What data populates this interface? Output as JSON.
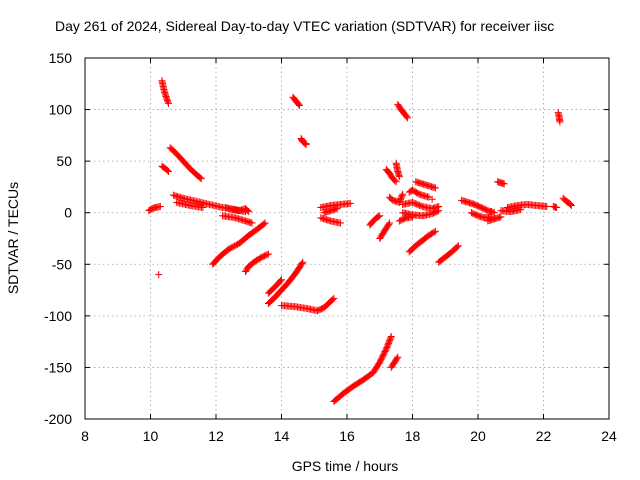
{
  "chart_data": {
    "type": "scatter",
    "title": "Day 261 of 2024, Sidereal Day-to-day VTEC variation (SDTVAR) for receiver iisc",
    "xlabel": "GPS time / hours",
    "ylabel": "SDTVAR / TECUs",
    "xlim": [
      8,
      24
    ],
    "ylim": [
      -200,
      150
    ],
    "xticks": [
      8,
      10,
      12,
      14,
      16,
      18,
      20,
      22,
      24
    ],
    "yticks": [
      -200,
      -150,
      -100,
      -50,
      0,
      50,
      100,
      150
    ],
    "grid": true,
    "marker": "+",
    "color": "#ff0000",
    "segments": [
      [
        [
          9.95,
          2
        ],
        [
          10.05,
          4
        ],
        [
          10.15,
          5
        ],
        [
          10.3,
          6
        ]
      ],
      [
        [
          10.35,
          128
        ],
        [
          10.42,
          118
        ],
        [
          10.5,
          110
        ],
        [
          10.55,
          106
        ]
      ],
      [
        [
          10.35,
          45
        ],
        [
          10.45,
          43
        ],
        [
          10.55,
          40
        ]
      ],
      [
        [
          10.6,
          63
        ],
        [
          10.8,
          57
        ],
        [
          11.0,
          50
        ],
        [
          11.2,
          43
        ],
        [
          11.4,
          37
        ],
        [
          11.55,
          33
        ]
      ],
      [
        [
          10.7,
          17
        ],
        [
          11.0,
          14
        ],
        [
          11.4,
          11
        ],
        [
          11.8,
          8
        ],
        [
          12.2,
          5
        ],
        [
          12.6,
          3
        ],
        [
          12.9,
          1
        ]
      ],
      [
        [
          10.8,
          10
        ],
        [
          11.2,
          7
        ],
        [
          11.6,
          5
        ]
      ],
      [
        [
          11.9,
          -50
        ],
        [
          12.1,
          -43
        ],
        [
          12.4,
          -35
        ],
        [
          12.7,
          -30
        ],
        [
          13.0,
          -22
        ],
        [
          13.3,
          -15
        ],
        [
          13.5,
          -10
        ]
      ],
      [
        [
          12.9,
          -57
        ],
        [
          13.0,
          -52
        ],
        [
          13.2,
          -47
        ],
        [
          13.4,
          -43
        ],
        [
          13.6,
          -40
        ]
      ],
      [
        [
          12.3,
          5
        ],
        [
          12.5,
          3
        ],
        [
          12.7,
          2
        ],
        [
          12.9,
          4
        ],
        [
          13.0,
          1
        ]
      ],
      [
        [
          12.2,
          -3
        ],
        [
          12.6,
          -5
        ],
        [
          12.9,
          -8
        ],
        [
          13.1,
          -10
        ]
      ],
      [
        [
          13.6,
          -88
        ],
        [
          13.8,
          -82
        ],
        [
          14.0,
          -75
        ],
        [
          14.2,
          -68
        ],
        [
          14.4,
          -60
        ],
        [
          14.55,
          -53
        ],
        [
          14.65,
          -48
        ]
      ],
      [
        [
          13.6,
          -78
        ],
        [
          13.8,
          -72
        ],
        [
          14.0,
          -65
        ]
      ],
      [
        [
          14.0,
          -90
        ],
        [
          14.4,
          -91
        ],
        [
          14.8,
          -93
        ],
        [
          15.1,
          -95
        ],
        [
          15.3,
          -92
        ],
        [
          15.5,
          -86
        ],
        [
          15.6,
          -83
        ]
      ],
      [
        [
          14.35,
          112
        ],
        [
          14.45,
          108
        ],
        [
          14.55,
          104
        ]
      ],
      [
        [
          14.6,
          72
        ],
        [
          14.65,
          69
        ],
        [
          14.75,
          66
        ]
      ],
      [
        [
          15.6,
          -183
        ],
        [
          15.9,
          -175
        ],
        [
          16.2,
          -168
        ],
        [
          16.5,
          -162
        ],
        [
          16.8,
          -155
        ],
        [
          17.0,
          -145
        ],
        [
          17.2,
          -132
        ],
        [
          17.35,
          -120
        ]
      ],
      [
        [
          17.35,
          -150
        ],
        [
          17.45,
          -145
        ],
        [
          17.55,
          -140
        ]
      ],
      [
        [
          15.2,
          5
        ],
        [
          15.5,
          7
        ],
        [
          15.8,
          8
        ],
        [
          16.1,
          9
        ]
      ],
      [
        [
          15.2,
          -5
        ],
        [
          15.5,
          -8
        ],
        [
          15.8,
          -10
        ]
      ],
      [
        [
          15.3,
          0
        ],
        [
          15.5,
          2
        ],
        [
          15.7,
          4
        ]
      ],
      [
        [
          16.7,
          -12
        ],
        [
          16.8,
          -8
        ],
        [
          16.9,
          -5
        ],
        [
          17.0,
          -3
        ]
      ],
      [
        [
          17.0,
          -25
        ],
        [
          17.1,
          -20
        ],
        [
          17.2,
          -15
        ],
        [
          17.3,
          -10
        ]
      ],
      [
        [
          17.2,
          42
        ],
        [
          17.3,
          38
        ],
        [
          17.4,
          33
        ],
        [
          17.5,
          30
        ]
      ],
      [
        [
          17.5,
          48
        ],
        [
          17.55,
          40
        ],
        [
          17.6,
          35
        ]
      ],
      [
        [
          17.55,
          105
        ],
        [
          17.65,
          100
        ],
        [
          17.75,
          96
        ],
        [
          17.85,
          92
        ]
      ],
      [
        [
          17.9,
          20
        ],
        [
          18.0,
          22
        ],
        [
          18.2,
          18
        ],
        [
          18.5,
          15
        ]
      ],
      [
        [
          17.7,
          8
        ],
        [
          18.0,
          10
        ],
        [
          18.3,
          6
        ],
        [
          18.6,
          4
        ],
        [
          18.8,
          6
        ]
      ],
      [
        [
          17.7,
          0
        ],
        [
          18.0,
          -2
        ],
        [
          18.3,
          -3
        ],
        [
          18.6,
          -1
        ],
        [
          18.8,
          2
        ]
      ],
      [
        [
          17.6,
          -8
        ],
        [
          17.8,
          -5
        ],
        [
          18.0,
          -4
        ]
      ],
      [
        [
          17.3,
          15
        ],
        [
          17.4,
          12
        ],
        [
          17.6,
          10
        ],
        [
          17.7,
          18
        ]
      ],
      [
        [
          18.1,
          30
        ],
        [
          18.3,
          28
        ],
        [
          18.5,
          26
        ],
        [
          18.7,
          24
        ]
      ],
      [
        [
          17.9,
          -38
        ],
        [
          18.1,
          -32
        ],
        [
          18.3,
          -27
        ],
        [
          18.5,
          -22
        ],
        [
          18.7,
          -18
        ]
      ],
      [
        [
          18.8,
          -48
        ],
        [
          19.0,
          -43
        ],
        [
          19.2,
          -38
        ],
        [
          19.4,
          -32
        ]
      ],
      [
        [
          19.5,
          12
        ],
        [
          19.7,
          10
        ],
        [
          19.9,
          8
        ],
        [
          20.1,
          5
        ],
        [
          20.3,
          2
        ],
        [
          20.5,
          0
        ]
      ],
      [
        [
          19.8,
          0
        ],
        [
          20.0,
          -3
        ],
        [
          20.2,
          -5
        ],
        [
          20.4,
          -4
        ]
      ],
      [
        [
          20.3,
          -8
        ],
        [
          20.5,
          -6
        ],
        [
          20.7,
          -4
        ]
      ],
      [
        [
          20.6,
          30
        ],
        [
          20.7,
          29
        ],
        [
          20.8,
          28
        ]
      ],
      [
        [
          20.9,
          5
        ],
        [
          21.2,
          7
        ],
        [
          21.5,
          8
        ],
        [
          21.8,
          7
        ],
        [
          22.1,
          6
        ]
      ],
      [
        [
          20.7,
          2
        ],
        [
          21.0,
          1
        ],
        [
          21.3,
          3
        ]
      ],
      [
        [
          22.45,
          97
        ],
        [
          22.48,
          93
        ],
        [
          22.5,
          88
        ]
      ],
      [
        [
          22.6,
          14
        ],
        [
          22.7,
          11
        ],
        [
          22.8,
          9
        ],
        [
          22.85,
          7
        ]
      ],
      [
        [
          22.3,
          6
        ],
        [
          22.4,
          5
        ]
      ]
    ],
    "outliers": [
      [
        10.25,
        -60
      ],
      [
        14.75,
        67
      ],
      [
        18.6,
        13
      ],
      [
        20.4,
        1
      ]
    ]
  }
}
